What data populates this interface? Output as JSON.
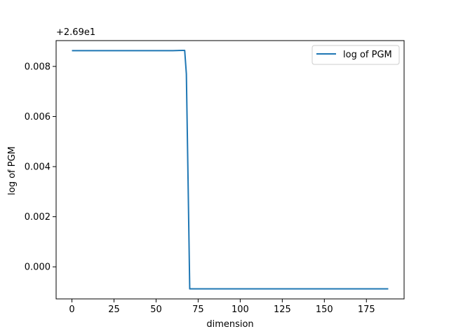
{
  "chart_data": {
    "type": "line",
    "title": "",
    "xlabel": "dimension",
    "ylabel": "log of PGM",
    "offset_label": "+2.69e1",
    "xlim": [
      -9.4,
      197.4
    ],
    "ylim": [
      -0.00128,
      0.00903
    ],
    "xticks": [
      0,
      25,
      50,
      75,
      100,
      125,
      150,
      175
    ],
    "xtick_labels": [
      "0",
      "25",
      "50",
      "75",
      "100",
      "125",
      "150",
      "175"
    ],
    "yticks": [
      0.0,
      0.002,
      0.004,
      0.006,
      0.008
    ],
    "ytick_labels": [
      "0.000",
      "0.002",
      "0.004",
      "0.006",
      "0.008"
    ],
    "grid": false,
    "legend": {
      "position": "top-right",
      "entries": [
        "log of PGM"
      ]
    },
    "series": [
      {
        "name": "log of PGM",
        "color": "#1f77b4",
        "x": [
          0,
          60,
          66,
          67,
          68,
          69,
          70,
          188
        ],
        "y": [
          0.00863,
          0.00863,
          0.00864,
          0.00864,
          0.0077,
          0.0035,
          -0.00088,
          -0.00088
        ]
      }
    ]
  }
}
